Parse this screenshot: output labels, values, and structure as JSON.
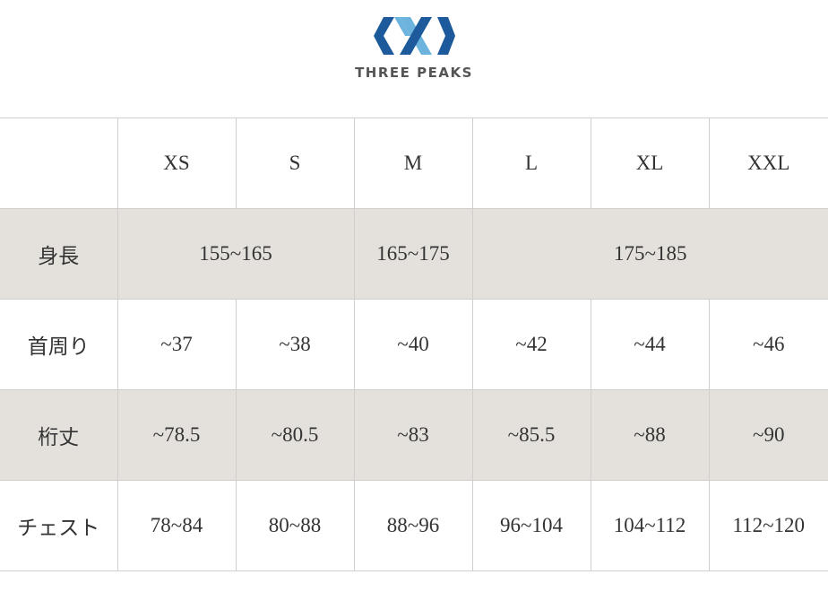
{
  "header": {
    "brand": "THREE PEAKS"
  },
  "table": {
    "columns": [
      "XS",
      "S",
      "M",
      "L",
      "XL",
      "XXL"
    ],
    "rows": [
      {
        "label": "身長",
        "cells": [
          "155~165",
          "165~175",
          "175~185"
        ]
      },
      {
        "label": "首周り",
        "cells": [
          "~37",
          "~38",
          "~40",
          "~42",
          "~44",
          "~46"
        ]
      },
      {
        "label": "桁丈",
        "cells": [
          "~78.5",
          "~80.5",
          "~83",
          "~85.5",
          "~88",
          "~90"
        ]
      },
      {
        "label": "チェスト",
        "cells": [
          "78~84",
          "80~88",
          "88~96",
          "96~104",
          "104~112",
          "112~120"
        ]
      }
    ]
  }
}
